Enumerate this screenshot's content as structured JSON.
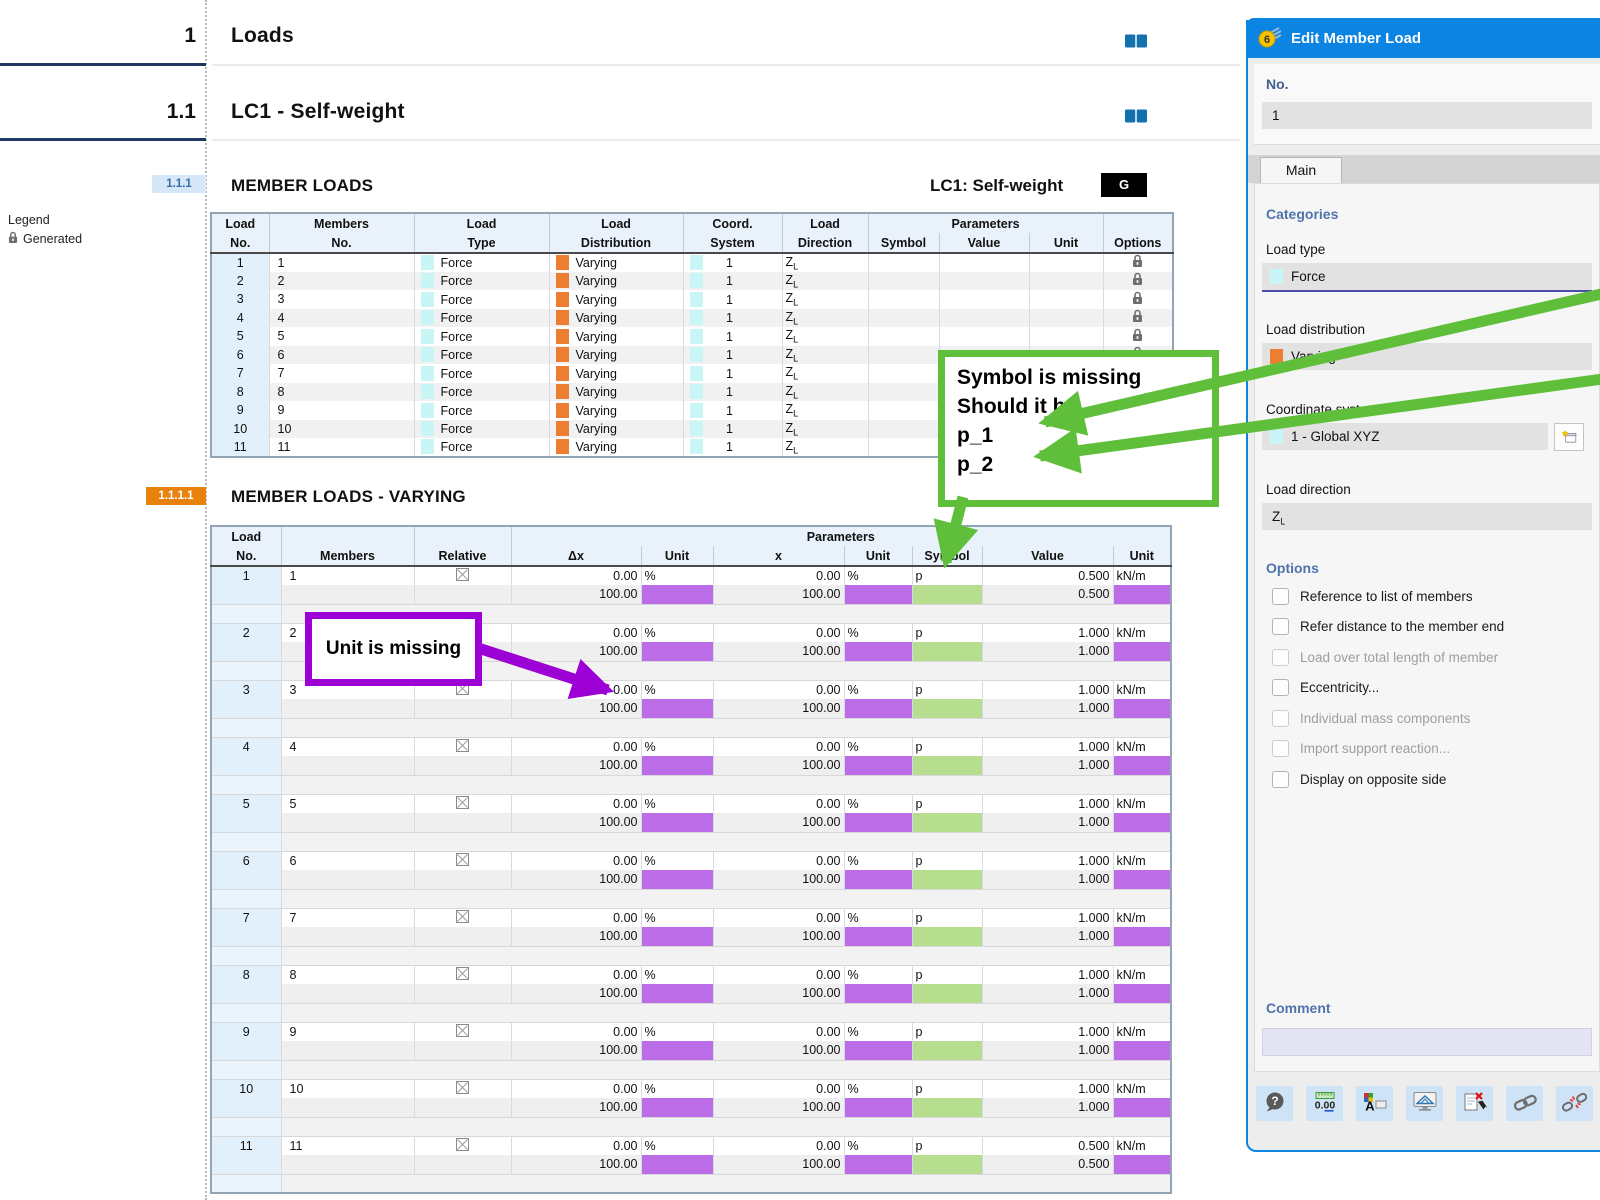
{
  "report": {
    "sections": [
      {
        "number": "1",
        "title": "Loads"
      },
      {
        "number": "1.1",
        "title": "LC1 - Self-weight"
      }
    ],
    "legend": {
      "title": "Legend",
      "items": [
        {
          "icon": "lock-icon",
          "label": "Generated"
        }
      ]
    },
    "member_loads": {
      "badge": "1.1.1",
      "title": "MEMBER LOADS",
      "case_label": "LC1: Self-weight",
      "case_badge": "G",
      "columns": {
        "load": "Load",
        "no": "No.",
        "members": "Members",
        "members_no": "No.",
        "type_top": "Load",
        "type": "Type",
        "dist_top": "Load",
        "dist": "Distribution",
        "coord_top": "Coord.",
        "coord": "System",
        "dir_top": "Load",
        "dir": "Direction",
        "parameters": "Parameters",
        "symbol": "Symbol",
        "value": "Value",
        "unit": "Unit",
        "options": "Options"
      },
      "rows": [
        {
          "no": "1",
          "members": "1",
          "type": "Force",
          "distribution": "Varying",
          "coord": "1",
          "direction": "Z",
          "direction_sub": "L",
          "option": "lock"
        },
        {
          "no": "2",
          "members": "2",
          "type": "Force",
          "distribution": "Varying",
          "coord": "1",
          "direction": "Z",
          "direction_sub": "L",
          "option": "lock"
        },
        {
          "no": "3",
          "members": "3",
          "type": "Force",
          "distribution": "Varying",
          "coord": "1",
          "direction": "Z",
          "direction_sub": "L",
          "option": "lock"
        },
        {
          "no": "4",
          "members": "4",
          "type": "Force",
          "distribution": "Varying",
          "coord": "1",
          "direction": "Z",
          "direction_sub": "L",
          "option": "lock"
        },
        {
          "no": "5",
          "members": "5",
          "type": "Force",
          "distribution": "Varying",
          "coord": "1",
          "direction": "Z",
          "direction_sub": "L",
          "option": "lock"
        },
        {
          "no": "6",
          "members": "6",
          "type": "Force",
          "distribution": "Varying",
          "coord": "1",
          "direction": "Z",
          "direction_sub": "L",
          "option": "lock"
        },
        {
          "no": "7",
          "members": "7",
          "type": "Force",
          "distribution": "Varying",
          "coord": "1",
          "direction": "Z",
          "direction_sub": "L",
          "option": "lock"
        },
        {
          "no": "8",
          "members": "8",
          "type": "Force",
          "distribution": "Varying",
          "coord": "1",
          "direction": "Z",
          "direction_sub": "L",
          "option": "lock"
        },
        {
          "no": "9",
          "members": "9",
          "type": "Force",
          "distribution": "Varying",
          "coord": "1",
          "direction": "Z",
          "direction_sub": "L",
          "option": "lock"
        },
        {
          "no": "10",
          "members": "10",
          "type": "Force",
          "distribution": "Varying",
          "coord": "1",
          "direction": "Z",
          "direction_sub": "L",
          "option": "lock"
        },
        {
          "no": "11",
          "members": "11",
          "type": "Force",
          "distribution": "Varying",
          "coord": "1",
          "direction": "Z",
          "direction_sub": "L",
          "option": "lock"
        }
      ]
    },
    "member_loads_varying": {
      "badge": "1.1.1.1",
      "title": "MEMBER LOADS - VARYING",
      "columns": {
        "load": "Load",
        "no": "No.",
        "members": "Members",
        "relative": "Relative",
        "parameters": "Parameters",
        "dx": "Δx",
        "unit1": "Unit",
        "x": "x",
        "unit2": "Unit",
        "symbol": "Symbol",
        "value": "Value",
        "unit3": "Unit"
      },
      "groups": [
        {
          "no": "1",
          "members": "1",
          "relative": "checked",
          "r1": {
            "dx": "0.00",
            "unit": "%",
            "x": "0.00",
            "unit2": "%",
            "symbol": "p",
            "value": "0.500",
            "unit3": "kN/m"
          },
          "r2": {
            "dx": "100.00",
            "x": "100.00",
            "value": "0.500"
          }
        },
        {
          "no": "2",
          "members": "2",
          "relative": "checked",
          "r1": {
            "dx": "0.00",
            "unit": "%",
            "x": "0.00",
            "unit2": "%",
            "symbol": "p",
            "value": "1.000",
            "unit3": "kN/m"
          },
          "r2": {
            "dx": "100.00",
            "x": "100.00",
            "value": "1.000"
          }
        },
        {
          "no": "3",
          "members": "3",
          "relative": "checked",
          "r1": {
            "dx": "0.00",
            "unit": "%",
            "x": "0.00",
            "unit2": "%",
            "symbol": "p",
            "value": "1.000",
            "unit3": "kN/m"
          },
          "r2": {
            "dx": "100.00",
            "x": "100.00",
            "value": "1.000"
          }
        },
        {
          "no": "4",
          "members": "4",
          "relative": "checked",
          "r1": {
            "dx": "0.00",
            "unit": "%",
            "x": "0.00",
            "unit2": "%",
            "symbol": "p",
            "value": "1.000",
            "unit3": "kN/m"
          },
          "r2": {
            "dx": "100.00",
            "x": "100.00",
            "value": "1.000"
          }
        },
        {
          "no": "5",
          "members": "5",
          "relative": "checked",
          "r1": {
            "dx": "0.00",
            "unit": "%",
            "x": "0.00",
            "unit2": "%",
            "symbol": "p",
            "value": "1.000",
            "unit3": "kN/m"
          },
          "r2": {
            "dx": "100.00",
            "x": "100.00",
            "value": "1.000"
          }
        },
        {
          "no": "6",
          "members": "6",
          "relative": "checked",
          "r1": {
            "dx": "0.00",
            "unit": "%",
            "x": "0.00",
            "unit2": "%",
            "symbol": "p",
            "value": "1.000",
            "unit3": "kN/m"
          },
          "r2": {
            "dx": "100.00",
            "x": "100.00",
            "value": "1.000"
          }
        },
        {
          "no": "7",
          "members": "7",
          "relative": "checked",
          "r1": {
            "dx": "0.00",
            "unit": "%",
            "x": "0.00",
            "unit2": "%",
            "symbol": "p",
            "value": "1.000",
            "unit3": "kN/m"
          },
          "r2": {
            "dx": "100.00",
            "x": "100.00",
            "value": "1.000"
          }
        },
        {
          "no": "8",
          "members": "8",
          "relative": "checked",
          "r1": {
            "dx": "0.00",
            "unit": "%",
            "x": "0.00",
            "unit2": "%",
            "symbol": "p",
            "value": "1.000",
            "unit3": "kN/m"
          },
          "r2": {
            "dx": "100.00",
            "x": "100.00",
            "value": "1.000"
          }
        },
        {
          "no": "9",
          "members": "9",
          "relative": "checked",
          "r1": {
            "dx": "0.00",
            "unit": "%",
            "x": "0.00",
            "unit2": "%",
            "symbol": "p",
            "value": "1.000",
            "unit3": "kN/m"
          },
          "r2": {
            "dx": "100.00",
            "x": "100.00",
            "value": "1.000"
          }
        },
        {
          "no": "10",
          "members": "10",
          "relative": "checked",
          "r1": {
            "dx": "0.00",
            "unit": "%",
            "x": "0.00",
            "unit2": "%",
            "symbol": "p",
            "value": "1.000",
            "unit3": "kN/m"
          },
          "r2": {
            "dx": "100.00",
            "x": "100.00",
            "value": "1.000"
          }
        },
        {
          "no": "11",
          "members": "11",
          "relative": "checked",
          "r1": {
            "dx": "0.00",
            "unit": "%",
            "x": "0.00",
            "unit2": "%",
            "symbol": "p",
            "value": "0.500",
            "unit3": "kN/m"
          },
          "r2": {
            "dx": "100.00",
            "x": "100.00",
            "value": "0.500"
          }
        }
      ]
    }
  },
  "panel": {
    "title": "Edit Member Load",
    "no_label": "No.",
    "no_value": "1",
    "tab_label": "Main",
    "categories_label": "Categories",
    "load_type": {
      "label": "Load type",
      "value": "Force"
    },
    "load_distribution": {
      "label": "Load distribution",
      "value": "Varying"
    },
    "coordinate_system": {
      "label": "Coordinate system",
      "value": "1 - Global XYZ"
    },
    "load_direction": {
      "label": "Load direction",
      "value": "Z",
      "value_sub": "L"
    },
    "options_label": "Options",
    "options": [
      {
        "label": "Reference to list of members",
        "enabled": true
      },
      {
        "label": "Refer distance to the member end",
        "enabled": true
      },
      {
        "label": "Load over total length of member",
        "enabled": false
      },
      {
        "label": "Eccentricity...",
        "enabled": true
      },
      {
        "label": "Individual mass components",
        "enabled": false
      },
      {
        "label": "Import support reaction...",
        "enabled": false
      },
      {
        "label": "Display on opposite side",
        "enabled": true
      }
    ],
    "comment_label": "Comment",
    "comment_value": "",
    "toolbar_icons": [
      "help",
      "units",
      "font-color",
      "display",
      "delete-load",
      "link",
      "unlink"
    ]
  },
  "annotations": {
    "symbol_note": {
      "lines": [
        "Symbol is missing",
        "Should it be..",
        "p_1",
        "p_2"
      ],
      "color": "#5fbf3a"
    },
    "unit_note": {
      "text": "Unit is missing",
      "color": "#9d00d4"
    }
  },
  "colors": {
    "accent_blue": "#0b84e2",
    "highlight_purple": "#bd6ce8",
    "highlight_green": "#b7dd8f",
    "swatch_orange": "#ed7d31",
    "swatch_cyan": "#c9f5f7",
    "annotation_green": "#5fbf3a",
    "annotation_purple": "#9d00d4",
    "badge_orange": "#e8820c",
    "header_navy": "#203864",
    "case_badge_bg": "#000000"
  }
}
